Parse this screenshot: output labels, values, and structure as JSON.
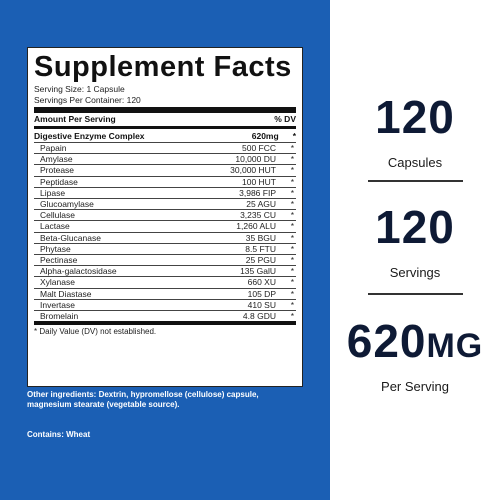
{
  "label": {
    "title": "Supplement Facts",
    "serving_size": "Serving Size: 1 Capsule",
    "servings_per_container": "Servings Per Container: 120",
    "header_left": "Amount Per Serving",
    "header_right": "% DV",
    "complex": {
      "name": "Digestive Enzyme Complex",
      "amount": "620mg",
      "dv": "*"
    },
    "rows": [
      {
        "name": "Papain",
        "amount": "500 FCC",
        "dv": "*"
      },
      {
        "name": "Amylase",
        "amount": "10,000 DU",
        "dv": "*"
      },
      {
        "name": "Protease",
        "amount": "30,000 HUT",
        "dv": "*"
      },
      {
        "name": "Peptidase",
        "amount": "100 HUT",
        "dv": "*"
      },
      {
        "name": "Lipase",
        "amount": "3,986 FIP",
        "dv": "*"
      },
      {
        "name": "Glucoamylase",
        "amount": "25 AGU",
        "dv": "*"
      },
      {
        "name": "Cellulase",
        "amount": "3,235 CU",
        "dv": "*"
      },
      {
        "name": "Lactase",
        "amount": "1,260 ALU",
        "dv": "*"
      },
      {
        "name": "Beta-Glucanase",
        "amount": "35 BGU",
        "dv": "*"
      },
      {
        "name": "Phytase",
        "amount": "8.5 FTU",
        "dv": "*"
      },
      {
        "name": "Pectinase",
        "amount": "25 PGU",
        "dv": "*"
      },
      {
        "name": "Alpha-galactosidase",
        "amount": "135 GalU",
        "dv": "*"
      },
      {
        "name": "Xylanase",
        "amount": "660 XU",
        "dv": "*"
      },
      {
        "name": "Malt Diastase",
        "amount": "105 DP",
        "dv": "*"
      },
      {
        "name": "Invertase",
        "amount": "410 SU",
        "dv": "*"
      },
      {
        "name": "Bromelain",
        "amount": "4.8 GDU",
        "dv": "*"
      }
    ],
    "footnote": "* Daily Value (DV) not established."
  },
  "other_ingredients": "Other ingredients: Dextrin, hypromellose (cellulose) capsule, magnesium stearate (vegetable source).",
  "contains": "Contains: Wheat",
  "stats": [
    {
      "value": "120",
      "unit": "",
      "label": "Capsules"
    },
    {
      "value": "120",
      "unit": "",
      "label": "Servings"
    },
    {
      "value": "620",
      "unit": "MG",
      "label": "Per Serving"
    }
  ],
  "colors": {
    "panel_blue": "#1b5fb4",
    "stat_text": "#0e1a35"
  }
}
